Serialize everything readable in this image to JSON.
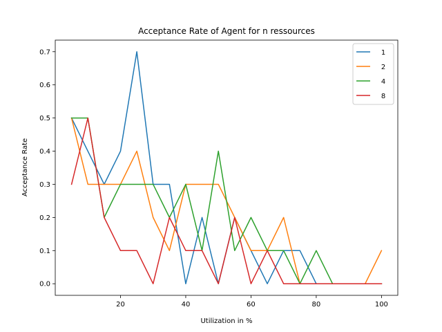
{
  "chart_data": {
    "type": "line",
    "title": "Acceptance Rate of Agent for n ressources",
    "xlabel": "Utilization in %",
    "ylabel": "Acceptance Rate",
    "xlim": [
      0,
      105
    ],
    "ylim": [
      -0.035,
      0.735
    ],
    "xticks": [
      20,
      40,
      60,
      80,
      100
    ],
    "yticks": [
      0.0,
      0.1,
      0.2,
      0.3,
      0.4,
      0.5,
      0.6,
      0.7
    ],
    "grid": false,
    "legend_position": "top-right",
    "x": [
      5,
      10,
      15,
      20,
      25,
      30,
      35,
      40,
      45,
      50,
      55,
      60,
      65,
      70,
      75,
      80,
      85,
      90,
      95,
      100
    ],
    "series": [
      {
        "name": "1",
        "color": "#1f77b4",
        "values": [
          0.5,
          0.4,
          0.3,
          0.4,
          0.7,
          0.3,
          0.3,
          0.0,
          0.2,
          0.0,
          0.2,
          0.1,
          0.0,
          0.1,
          0.1,
          0.0,
          0.0,
          0.0,
          0.0,
          0.0
        ]
      },
      {
        "name": "2",
        "color": "#ff7f0e",
        "values": [
          0.5,
          0.3,
          0.3,
          0.3,
          0.4,
          0.2,
          0.1,
          0.3,
          0.3,
          0.3,
          0.2,
          0.1,
          0.1,
          0.2,
          0.0,
          0.0,
          0.0,
          0.0,
          0.0,
          0.1
        ]
      },
      {
        "name": "4",
        "color": "#2ca02c",
        "values": [
          0.5,
          0.5,
          0.2,
          0.3,
          0.3,
          0.3,
          0.2,
          0.3,
          0.1,
          0.4,
          0.1,
          0.2,
          0.1,
          0.1,
          0.0,
          0.1,
          0.0,
          0.0,
          0.0,
          0.0
        ]
      },
      {
        "name": "8",
        "color": "#d62728",
        "values": [
          0.3,
          0.5,
          0.2,
          0.1,
          0.1,
          0.0,
          0.2,
          0.1,
          0.1,
          0.0,
          0.2,
          0.0,
          0.1,
          0.0,
          0.0,
          0.0,
          0.0,
          0.0,
          0.0,
          0.0
        ]
      }
    ]
  }
}
